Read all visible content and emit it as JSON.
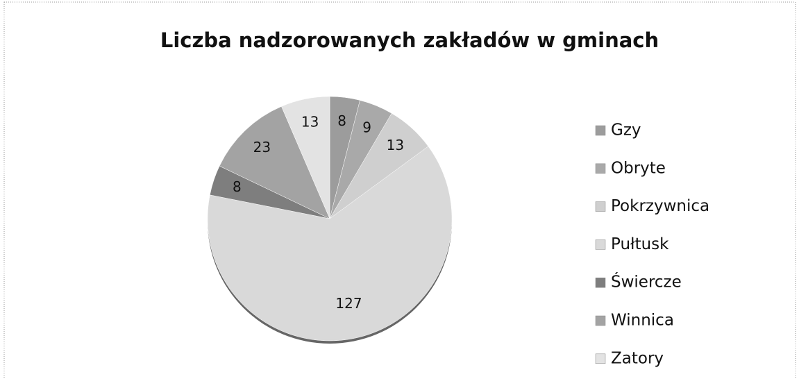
{
  "chart_data": {
    "type": "pie",
    "title": "Liczba nadzorowanych zakładów w gminach",
    "categories": [
      "Gzy",
      "Obryte",
      "Pokrzywnica",
      "Pułtusk",
      "Świercze",
      "Winnica",
      "Zatory"
    ],
    "values": [
      8,
      9,
      13,
      127,
      8,
      23,
      13
    ],
    "colors": [
      "#9c9c9c",
      "#a9a9a9",
      "#cfcfcf",
      "#d9d9d9",
      "#7e7e7e",
      "#a3a3a3",
      "#e3e3e3"
    ],
    "legend": "right"
  }
}
